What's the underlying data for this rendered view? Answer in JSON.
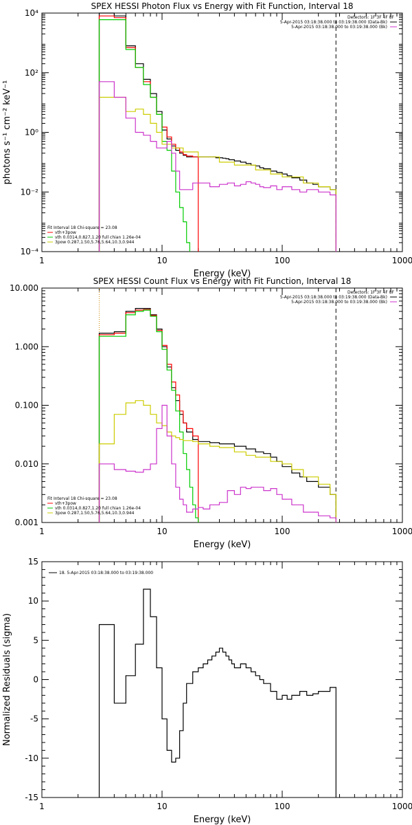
{
  "chart_data": [
    {
      "type": "line",
      "title": "SPEX HESSI Photon Flux vs Energy with Fit Function, Interval 18",
      "xlabel": "Energy (keV)",
      "ylabel": "photons s⁻¹ cm⁻² keV⁻¹",
      "xscale": "log",
      "yscale": "log",
      "xlim": [
        1,
        1000
      ],
      "ylim": [
        0.0001,
        10000
      ],
      "x_ticks": [
        "1",
        "10",
        "100",
        "1000"
      ],
      "y_ticks": [
        "10⁻⁴",
        "10⁻²",
        "10⁰",
        "10²",
        "10⁴"
      ],
      "legend_header": "Detectors: 1F 3F 4F 8F",
      "legend_entries": [
        {
          "label": "5-Apr-2015 03:18:38.000 to 03:19:38.000 (Data-Bk)",
          "color": "#000000"
        },
        {
          "label": "5-Apr-2015 03:18:38.000 to 03:19:38.000 (Bk)",
          "color": "#cc33cc"
        }
      ],
      "fit_header": "Fit Interval 18   Chi-square = 23.08",
      "fit_entries": [
        {
          "label": "vth+3pow",
          "color": "#ff0000"
        },
        {
          "label": "vth 0.0314,0.827,1.20  full chian 1.26e-04",
          "color": "#00cc00"
        },
        {
          "label": "3pow 0.287,1.50,5.76,5.64,10.3,0.944",
          "color": "#cccc00"
        }
      ],
      "vlines": [
        {
          "x": 3,
          "color": "#cc8800",
          "style": "dotted"
        },
        {
          "x": 280,
          "color": "#000000",
          "style": "dashed"
        }
      ],
      "series": [
        {
          "name": "Data-Bk",
          "color": "#000000",
          "x": [
            3,
            4,
            5,
            6,
            7,
            8,
            9,
            10,
            11,
            12,
            13,
            14,
            15,
            16,
            18,
            20,
            22,
            24,
            26,
            28,
            30,
            32,
            34,
            36,
            38,
            40,
            45,
            50,
            55,
            60,
            65,
            70,
            80,
            90,
            100,
            110,
            120,
            140,
            160,
            180,
            200,
            250,
            280
          ],
          "y": [
            10000,
            8000,
            800,
            200,
            60,
            20,
            5,
            1.2,
            0.6,
            0.35,
            0.25,
            0.2,
            0.17,
            0.15,
            0.15,
            0.15,
            0.15,
            0.15,
            0.15,
            0.14,
            0.14,
            0.135,
            0.13,
            0.12,
            0.12,
            0.11,
            0.1,
            0.09,
            0.08,
            0.075,
            0.065,
            0.06,
            0.05,
            0.045,
            0.04,
            0.035,
            0.03,
            0.025,
            0.02,
            0.018,
            0.015,
            0.012,
            0.01
          ]
        },
        {
          "name": "vth+3pow",
          "color": "#ff0000",
          "x": [
            3,
            4,
            5,
            6,
            7,
            8,
            9,
            10,
            11,
            12,
            13,
            14,
            15,
            16,
            18,
            20
          ],
          "y": [
            8000,
            7000,
            700,
            150,
            50,
            15,
            4,
            1.5,
            0.7,
            0.4,
            0.3,
            0.22,
            0.18,
            0.16,
            0.15,
            0.14
          ]
        },
        {
          "name": "vth",
          "color": "#00cc00",
          "x": [
            3,
            4,
            5,
            6,
            7,
            8,
            9,
            10,
            11,
            12,
            13,
            14,
            15,
            16,
            17
          ],
          "y": [
            6000,
            6000,
            600,
            150,
            40,
            15,
            4,
            0.5,
            0.25,
            0.05,
            0.01,
            0.003,
            0.001,
            0.0002,
            0.0001
          ]
        },
        {
          "name": "3pow",
          "color": "#cccc00",
          "x": [
            3,
            4,
            5,
            6,
            7,
            8,
            9,
            10,
            12,
            15,
            20,
            30,
            40,
            60,
            80,
            100,
            150,
            200,
            250,
            280
          ],
          "y": [
            15,
            15,
            5,
            6,
            4,
            2,
            1,
            0.4,
            0.3,
            0.22,
            0.15,
            0.1,
            0.08,
            0.055,
            0.04,
            0.032,
            0.02,
            0.015,
            0.012,
            0.01
          ]
        },
        {
          "name": "Bk",
          "color": "#cc33cc",
          "x": [
            3,
            4,
            5,
            6,
            7,
            8,
            9,
            10,
            11,
            12,
            13,
            14,
            15,
            18,
            20,
            25,
            30,
            35,
            40,
            45,
            50,
            55,
            60,
            65,
            70,
            80,
            90,
            100,
            120,
            140,
            160,
            200,
            250,
            280
          ],
          "y": [
            50,
            15,
            3,
            1,
            0.8,
            0.5,
            0.3,
            0.3,
            0.5,
            0.2,
            0.05,
            0.012,
            0.012,
            0.02,
            0.02,
            0.015,
            0.018,
            0.02,
            0.016,
            0.018,
            0.022,
            0.02,
            0.018,
            0.015,
            0.014,
            0.016,
            0.012,
            0.015,
            0.012,
            0.01,
            0.012,
            0.01,
            0.008,
            0.004
          ]
        }
      ]
    },
    {
      "type": "line",
      "title": "SPEX HESSI Count Flux vs Energy with Fit Function, Interval 18",
      "xlabel": "Energy (keV)",
      "ylabel": "",
      "xscale": "log",
      "yscale": "log",
      "xlim": [
        1,
        1000
      ],
      "ylim": [
        0.001,
        10
      ],
      "x_ticks": [
        "1",
        "10",
        "100",
        "1000"
      ],
      "y_ticks": [
        "0.001",
        "0.010",
        "0.100",
        "1.000",
        "10.000"
      ],
      "legend_header": "Detectors: 1F 3F 4F 8F",
      "legend_entries": [
        {
          "label": "5-Apr-2015 03:18:38.000 to 03:19:38.000 (Data-Bk)",
          "color": "#000000"
        },
        {
          "label": "5-Apr-2015 03:18:38.000 to 03:19:38.000 (Bk)",
          "color": "#cc33cc"
        }
      ],
      "fit_header": "Fit Interval 18   Chi-square = 23.08",
      "fit_entries": [
        {
          "label": "vth+3pow",
          "color": "#ff0000"
        },
        {
          "label": "vth 0.0314,0.827,1.20  full chian 1.26e-04",
          "color": "#00cc00"
        },
        {
          "label": "3pow 0.287,1.50,5.76,5.64,10.3,0.944",
          "color": "#cccc00"
        }
      ],
      "vlines": [
        {
          "x": 3,
          "color": "#cc8800",
          "style": "dotted"
        },
        {
          "x": 280,
          "color": "#000000",
          "style": "dashed"
        }
      ],
      "series": [
        {
          "name": "Data-Bk",
          "color": "#000000",
          "x": [
            3,
            4,
            5,
            6,
            7,
            8,
            9,
            10,
            11,
            12,
            13,
            14,
            15,
            16,
            18,
            20,
            25,
            30,
            40,
            50,
            60,
            70,
            80,
            90,
            100,
            120,
            140,
            160,
            200,
            250,
            280
          ],
          "y": [
            1.7,
            1.8,
            4.0,
            4.5,
            4.5,
            3.5,
            2.0,
            1.0,
            0.45,
            0.2,
            0.12,
            0.07,
            0.05,
            0.035,
            0.026,
            0.024,
            0.023,
            0.022,
            0.02,
            0.018,
            0.016,
            0.015,
            0.013,
            0.011,
            0.009,
            0.007,
            0.006,
            0.005,
            0.004,
            0.003,
            0.002
          ]
        },
        {
          "name": "vth+3pow",
          "color": "#ff0000",
          "x": [
            3,
            4,
            5,
            6,
            7,
            8,
            9,
            10,
            11,
            12,
            13,
            14,
            15,
            16,
            18,
            20
          ],
          "y": [
            1.6,
            1.7,
            3.8,
            4.2,
            4.3,
            3.4,
            1.9,
            1.05,
            0.5,
            0.25,
            0.15,
            0.08,
            0.05,
            0.04,
            0.03,
            0.025
          ]
        },
        {
          "name": "vth",
          "color": "#00cc00",
          "x": [
            3,
            4,
            5,
            6,
            7,
            8,
            9,
            10,
            11,
            12,
            13,
            14,
            15,
            16,
            17,
            18,
            19,
            20
          ],
          "y": [
            1.5,
            1.5,
            3.5,
            4.0,
            4.2,
            3.3,
            1.8,
            0.9,
            0.4,
            0.18,
            0.08,
            0.035,
            0.015,
            0.008,
            0.004,
            0.002,
            0.0012,
            0.001
          ]
        },
        {
          "name": "3pow",
          "color": "#cccc00",
          "x": [
            3,
            4,
            5,
            6,
            7,
            8,
            9,
            10,
            11,
            12,
            13,
            14,
            15,
            18,
            20,
            25,
            30,
            40,
            50,
            60,
            80,
            100,
            120,
            150,
            200,
            250,
            280
          ],
          "y": [
            0.022,
            0.07,
            0.11,
            0.12,
            0.1,
            0.07,
            0.05,
            0.045,
            0.035,
            0.03,
            0.028,
            0.026,
            0.025,
            0.024,
            0.022,
            0.02,
            0.019,
            0.016,
            0.014,
            0.013,
            0.011,
            0.01,
            0.008,
            0.006,
            0.0045,
            0.003,
            0.0025
          ]
        },
        {
          "name": "Bk",
          "color": "#cc33cc",
          "x": [
            3,
            4,
            5,
            6,
            7,
            8,
            9,
            10,
            11,
            12,
            13,
            14,
            15,
            16,
            18,
            20,
            22,
            25,
            30,
            35,
            40,
            45,
            50,
            55,
            60,
            70,
            80,
            90,
            100,
            120,
            150,
            200,
            250,
            280
          ],
          "y": [
            0.01,
            0.008,
            0.0075,
            0.0072,
            0.008,
            0.01,
            0.04,
            0.1,
            0.03,
            0.01,
            0.004,
            0.0025,
            0.002,
            0.0015,
            0.0017,
            0.0018,
            0.0017,
            0.002,
            0.0022,
            0.0035,
            0.003,
            0.004,
            0.0038,
            0.004,
            0.004,
            0.0035,
            0.0038,
            0.003,
            0.0025,
            0.002,
            0.0015,
            0.0013,
            0.0012,
            0.0012
          ]
        }
      ]
    },
    {
      "type": "line",
      "title": "",
      "xlabel": "Energy (keV)",
      "ylabel": "Normalized Residuals (sigma)",
      "xscale": "log",
      "yscale": "linear",
      "xlim": [
        1,
        1000
      ],
      "ylim": [
        -15,
        15
      ],
      "x_ticks": [
        "1",
        "10",
        "100",
        "1000"
      ],
      "y_ticks": [
        "-15",
        "-10",
        "-5",
        "0",
        "5",
        "10",
        "15"
      ],
      "legend_entries": [
        {
          "label": "18.  5-Apr-2015 03:18:38.000 to 03:19:38.000",
          "color": "#000000"
        }
      ],
      "series": [
        {
          "name": "18.  5-Apr-2015 03:18:38.000 to 03:19:38.000",
          "color": "#000000",
          "x": [
            3,
            4,
            5,
            6,
            7,
            8,
            9,
            10,
            11,
            12,
            13,
            14,
            15,
            16,
            18,
            20,
            22,
            24,
            26,
            28,
            30,
            32,
            34,
            36,
            38,
            40,
            45,
            50,
            55,
            60,
            65,
            70,
            80,
            90,
            100,
            110,
            120,
            140,
            160,
            180,
            200,
            250,
            280
          ],
          "y": [
            7,
            -3,
            0.5,
            4.5,
            11.5,
            8,
            1.5,
            -5,
            -9,
            -10.5,
            -10,
            -6.5,
            -3,
            -0.5,
            1,
            1.5,
            2,
            2.5,
            3,
            3.5,
            4,
            3.5,
            3,
            2.5,
            2,
            1.5,
            2,
            1.5,
            1,
            0.5,
            0,
            -0.5,
            -1.5,
            -2.5,
            -2,
            -2.5,
            -2,
            -1.5,
            -2,
            -1.8,
            -1.5,
            -1,
            -1
          ]
        }
      ]
    }
  ]
}
